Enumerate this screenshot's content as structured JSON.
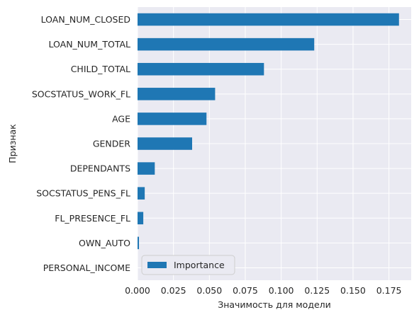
{
  "chart_data": {
    "type": "bar",
    "orientation": "horizontal",
    "xlabel": "Значимость для модели",
    "ylabel": "Признак",
    "xlim": [
      0,
      0.1905
    ],
    "x_ticks": [
      "0.000",
      "0.025",
      "0.050",
      "0.075",
      "0.100",
      "0.125",
      "0.150",
      "0.175"
    ],
    "x_tick_values": [
      0,
      0.025,
      0.05,
      0.075,
      0.1,
      0.125,
      0.15,
      0.175
    ],
    "categories": [
      "LOAN_NUM_CLOSED",
      "LOAN_NUM_TOTAL",
      "CHILD_TOTAL",
      "SOCSTATUS_WORK_FL",
      "AGE",
      "GENDER",
      "DEPENDANTS",
      "SOCSTATUS_PENS_FL",
      "FL_PRESENCE_FL",
      "OWN_AUTO",
      "PERSONAL_INCOME"
    ],
    "series": [
      {
        "name": "Importance",
        "values": [
          0.182,
          0.123,
          0.088,
          0.054,
          0.048,
          0.038,
          0.012,
          0.005,
          0.004,
          0.001,
          0.0
        ]
      }
    ],
    "grid": true,
    "legend": "lower-left",
    "colors": {
      "bar": "#1f77b4",
      "plot_background": "#eaeaf2",
      "grid": "#ffffff"
    }
  }
}
